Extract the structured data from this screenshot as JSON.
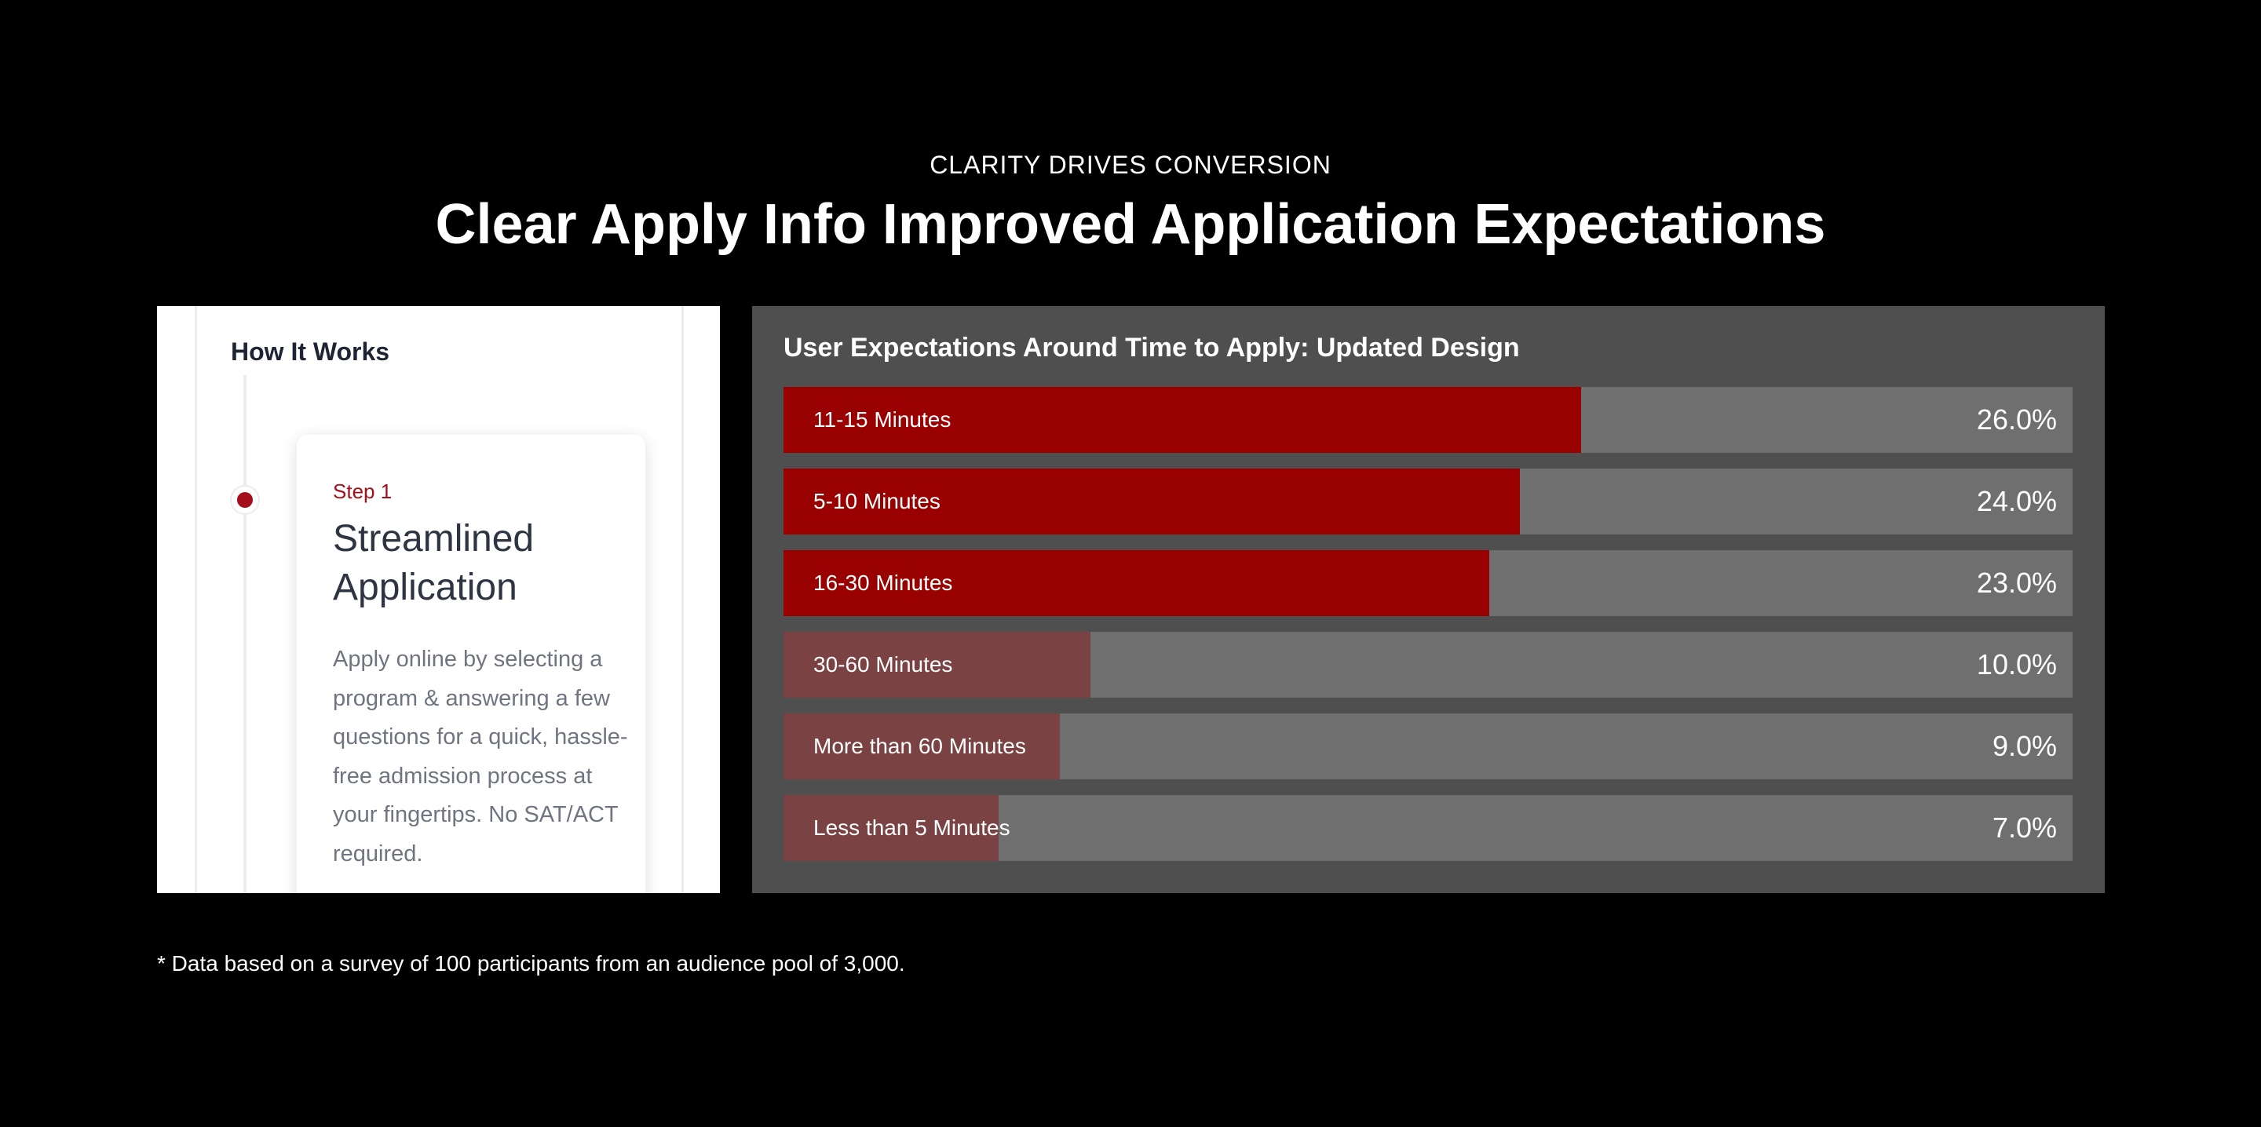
{
  "eyebrow": "CLARITY DRIVES CONVERSION",
  "headline": "Clear Apply Info Improved Application Expectations",
  "how_it_works": {
    "title": "How It Works",
    "step_label": "Step 1",
    "step_heading": "Streamlined Application",
    "step_body": "Apply online by selecting a program & answering a few questions for a quick, hassle-free admission process at your fingertips. No SAT/ACT required."
  },
  "colors": {
    "primary_bar": "#990000",
    "secondary_bar": "#7a4242",
    "track": "#6f6f6f",
    "panel": "#4f4f4f",
    "accent": "#a31019"
  },
  "chart_data": {
    "type": "bar",
    "orientation": "horizontal",
    "title": "User Expectations Around Time to Apply: Updated Design",
    "categories": [
      "11-15 Minutes",
      "5-10 Minutes",
      "16-30 Minutes",
      "30-60 Minutes",
      "More than 60 Minutes",
      "Less than 5 Minutes"
    ],
    "values": [
      26.0,
      24.0,
      23.0,
      10.0,
      9.0,
      7.0
    ],
    "value_labels": [
      "26.0%",
      "24.0%",
      "23.0%",
      "10.0%",
      "9.0%",
      "7.0%"
    ],
    "highlighted": [
      true,
      true,
      true,
      false,
      false,
      false
    ],
    "xlim": [
      0,
      42
    ],
    "grid": false,
    "legend": "none"
  },
  "footnote": "* Data based on a survey of 100 participants from an audience pool of 3,000."
}
